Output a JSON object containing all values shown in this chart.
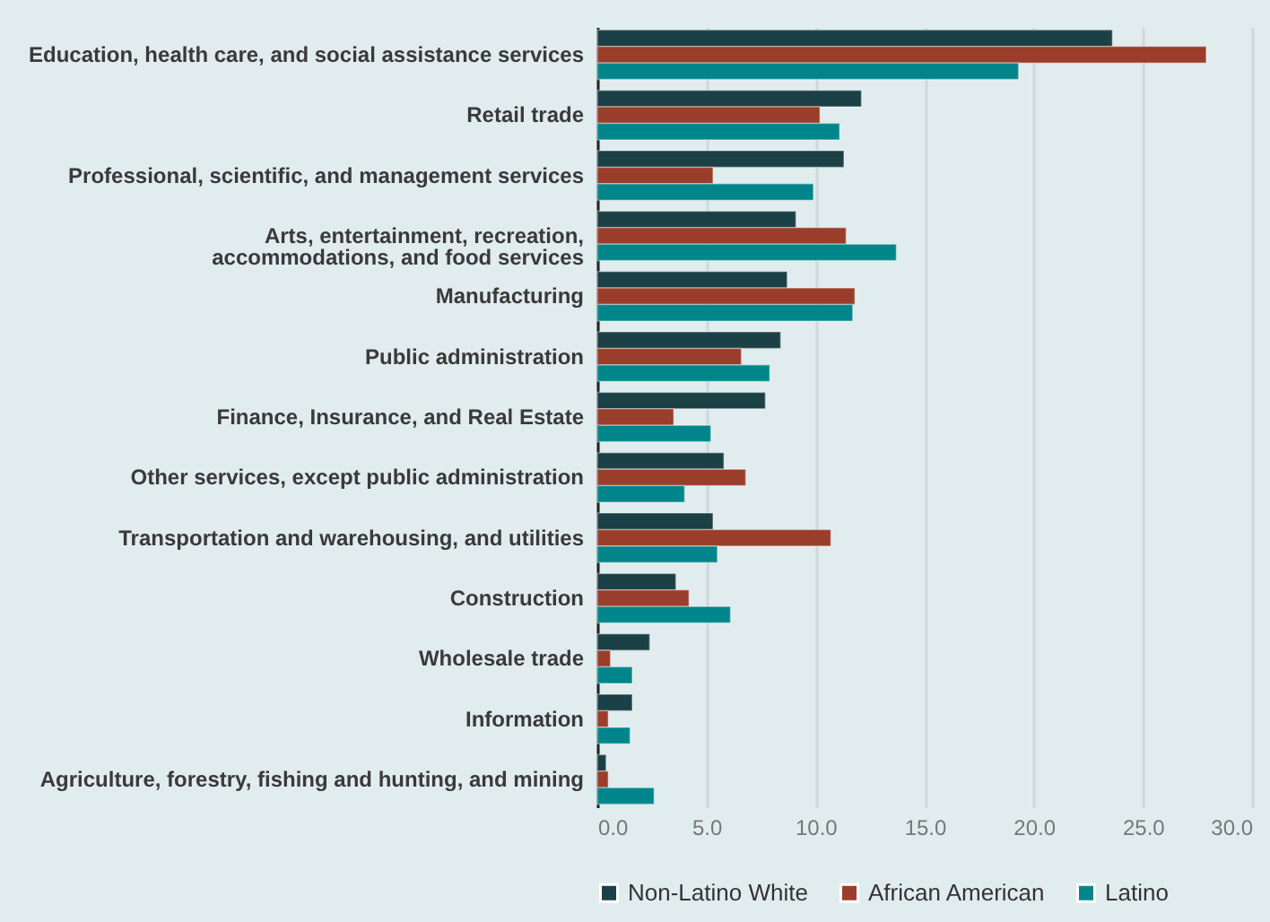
{
  "chart_data": {
    "type": "bar",
    "orientation": "horizontal",
    "categories": [
      "Education, health care, and social assistance services",
      "Retail trade",
      "Professional, scientific, and management services",
      "Arts, entertainment, recreation,\naccommodations, and food services",
      "Manufacturing",
      "Public administration",
      "Finance, Insurance, and Real Estate",
      "Other services, except public administration",
      "Transportation and warehousing, and utilities",
      "Construction",
      "Wholesale trade",
      "Information",
      "Agriculture, forestry, fishing and hunting, and mining"
    ],
    "series": [
      {
        "name": "Non-Latino White",
        "color": "#1b4045",
        "values": [
          23.6,
          12.1,
          11.3,
          9.1,
          8.7,
          8.4,
          7.7,
          5.8,
          5.3,
          3.6,
          2.4,
          1.6,
          0.4
        ]
      },
      {
        "name": "African American",
        "color": "#9b3d2b",
        "values": [
          27.9,
          10.2,
          5.3,
          11.4,
          11.8,
          6.6,
          3.5,
          6.8,
          10.7,
          4.2,
          0.6,
          0.5,
          0.5
        ]
      },
      {
        "name": "Latino",
        "color": "#00868a",
        "values": [
          19.3,
          11.1,
          9.9,
          13.7,
          11.7,
          7.9,
          5.2,
          4.0,
          5.5,
          6.1,
          1.6,
          1.5,
          2.6
        ]
      }
    ],
    "xlim": [
      0,
      30
    ],
    "xticks": [
      {
        "value": 0,
        "label": "0.0"
      },
      {
        "value": 5,
        "label": "5.0"
      },
      {
        "value": 10,
        "label": "10.0"
      },
      {
        "value": 15,
        "label": "15.0"
      },
      {
        "value": 20,
        "label": "20.0"
      },
      {
        "value": 25,
        "label": "25.0"
      },
      {
        "value": 30,
        "label": "30.0"
      }
    ],
    "grid": "x",
    "legend": "bottom"
  }
}
